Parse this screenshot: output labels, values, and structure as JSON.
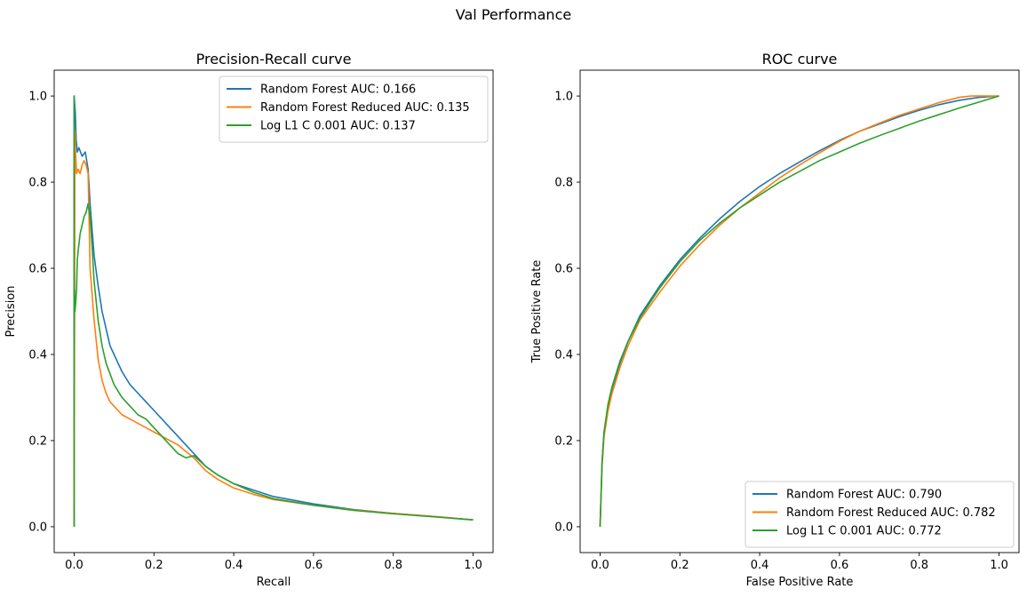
{
  "figure": {
    "suptitle": "Val Performance"
  },
  "colors": {
    "blue": "#1f77b4",
    "orange": "#ff7f0e",
    "green": "#2ca02c"
  },
  "chart_data": [
    {
      "type": "line",
      "title": "Precision-Recall curve",
      "xlabel": "Recall",
      "ylabel": "Precision",
      "xlim": [
        -0.05,
        1.05
      ],
      "ylim": [
        -0.06,
        1.06
      ],
      "xticks": [
        0.0,
        0.2,
        0.4,
        0.6,
        0.8,
        1.0
      ],
      "yticks": [
        0.0,
        0.2,
        0.4,
        0.6,
        0.8,
        1.0
      ],
      "grid": false,
      "legend": "upper right",
      "series": [
        {
          "name": "Random Forest AUC: 0.166",
          "color": "#1f77b4",
          "x": [
            0.0,
            0.0,
            0.003,
            0.005,
            0.008,
            0.012,
            0.02,
            0.028,
            0.035,
            0.04,
            0.05,
            0.06,
            0.07,
            0.08,
            0.09,
            0.1,
            0.12,
            0.14,
            0.16,
            0.18,
            0.2,
            0.22,
            0.24,
            0.26,
            0.28,
            0.3,
            0.33,
            0.36,
            0.4,
            0.45,
            0.5,
            0.6,
            0.7,
            0.8,
            0.9,
            1.0
          ],
          "y": [
            0.0,
            1.0,
            0.96,
            0.9,
            0.87,
            0.88,
            0.86,
            0.87,
            0.83,
            0.75,
            0.63,
            0.56,
            0.5,
            0.46,
            0.42,
            0.4,
            0.36,
            0.33,
            0.31,
            0.29,
            0.27,
            0.25,
            0.23,
            0.21,
            0.19,
            0.17,
            0.14,
            0.12,
            0.1,
            0.085,
            0.07,
            0.053,
            0.04,
            0.031,
            0.024,
            0.016
          ]
        },
        {
          "name": "Random Forest Reduced AUC: 0.135",
          "color": "#ff7f0e",
          "x": [
            0.0,
            0.002,
            0.004,
            0.006,
            0.01,
            0.015,
            0.02,
            0.025,
            0.03,
            0.035,
            0.04,
            0.05,
            0.06,
            0.07,
            0.08,
            0.09,
            0.1,
            0.12,
            0.14,
            0.16,
            0.18,
            0.2,
            0.22,
            0.24,
            0.26,
            0.28,
            0.3,
            0.33,
            0.36,
            0.4,
            0.45,
            0.5,
            0.6,
            0.7,
            0.8,
            0.9,
            1.0
          ],
          "y": [
            0.0,
            0.92,
            0.86,
            0.82,
            0.83,
            0.82,
            0.84,
            0.85,
            0.84,
            0.82,
            0.6,
            0.48,
            0.39,
            0.34,
            0.31,
            0.29,
            0.28,
            0.26,
            0.25,
            0.24,
            0.23,
            0.22,
            0.21,
            0.2,
            0.19,
            0.175,
            0.16,
            0.13,
            0.11,
            0.09,
            0.075,
            0.063,
            0.05,
            0.039,
            0.031,
            0.024,
            0.016
          ]
        },
        {
          "name": "Log L1 C 0.001 AUC: 0.137",
          "color": "#2ca02c",
          "x": [
            0.0,
            0.0,
            0.0,
            0.001,
            0.002,
            0.004,
            0.006,
            0.008,
            0.01,
            0.015,
            0.02,
            0.025,
            0.03,
            0.035,
            0.04,
            0.045,
            0.05,
            0.06,
            0.07,
            0.08,
            0.1,
            0.12,
            0.14,
            0.16,
            0.18,
            0.2,
            0.22,
            0.24,
            0.26,
            0.28,
            0.3,
            0.33,
            0.36,
            0.4,
            0.45,
            0.5,
            0.6,
            0.7,
            0.8,
            0.9,
            1.0
          ],
          "y": [
            0.0,
            1.0,
            0.4,
            0.55,
            0.5,
            0.52,
            0.55,
            0.62,
            0.64,
            0.68,
            0.7,
            0.72,
            0.73,
            0.75,
            0.72,
            0.65,
            0.57,
            0.48,
            0.42,
            0.38,
            0.33,
            0.3,
            0.28,
            0.26,
            0.25,
            0.23,
            0.21,
            0.19,
            0.17,
            0.16,
            0.165,
            0.14,
            0.12,
            0.1,
            0.08,
            0.065,
            0.05,
            0.038,
            0.03,
            0.023,
            0.016
          ]
        }
      ]
    },
    {
      "type": "line",
      "title": "ROC curve",
      "xlabel": "False Positive Rate",
      "ylabel": "True Positive Rate",
      "xlim": [
        -0.05,
        1.05
      ],
      "ylim": [
        -0.06,
        1.06
      ],
      "xticks": [
        0.0,
        0.2,
        0.4,
        0.6,
        0.8,
        1.0
      ],
      "yticks": [
        0.0,
        0.2,
        0.4,
        0.6,
        0.8,
        1.0
      ],
      "grid": false,
      "legend": "lower right",
      "series": [
        {
          "name": "Random Forest AUC: 0.790",
          "color": "#1f77b4",
          "x": [
            0.0,
            0.005,
            0.01,
            0.02,
            0.03,
            0.05,
            0.07,
            0.1,
            0.15,
            0.2,
            0.25,
            0.3,
            0.35,
            0.4,
            0.45,
            0.5,
            0.55,
            0.6,
            0.65,
            0.7,
            0.75,
            0.8,
            0.85,
            0.9,
            0.95,
            1.0
          ],
          "y": [
            0.0,
            0.15,
            0.22,
            0.28,
            0.32,
            0.38,
            0.43,
            0.49,
            0.56,
            0.62,
            0.67,
            0.715,
            0.755,
            0.79,
            0.82,
            0.847,
            0.873,
            0.897,
            0.918,
            0.935,
            0.952,
            0.967,
            0.98,
            0.99,
            0.997,
            1.0
          ]
        },
        {
          "name": "Random Forest Reduced AUC: 0.782",
          "color": "#ff7f0e",
          "x": [
            0.0,
            0.005,
            0.01,
            0.02,
            0.03,
            0.05,
            0.07,
            0.1,
            0.15,
            0.2,
            0.25,
            0.3,
            0.35,
            0.4,
            0.45,
            0.5,
            0.55,
            0.6,
            0.65,
            0.7,
            0.75,
            0.8,
            0.85,
            0.9,
            0.93,
            0.95,
            1.0
          ],
          "y": [
            0.0,
            0.14,
            0.21,
            0.27,
            0.31,
            0.37,
            0.42,
            0.48,
            0.545,
            0.605,
            0.655,
            0.7,
            0.74,
            0.775,
            0.81,
            0.84,
            0.868,
            0.895,
            0.918,
            0.937,
            0.955,
            0.97,
            0.985,
            0.997,
            1.0,
            1.0,
            1.0
          ]
        },
        {
          "name": "Log L1 C 0.001 AUC: 0.772",
          "color": "#2ca02c",
          "x": [
            0.0,
            0.005,
            0.01,
            0.02,
            0.03,
            0.05,
            0.07,
            0.1,
            0.15,
            0.2,
            0.25,
            0.3,
            0.35,
            0.4,
            0.45,
            0.5,
            0.55,
            0.6,
            0.65,
            0.7,
            0.75,
            0.8,
            0.85,
            0.9,
            0.95,
            1.0
          ],
          "y": [
            0.0,
            0.15,
            0.22,
            0.285,
            0.325,
            0.385,
            0.43,
            0.485,
            0.555,
            0.615,
            0.665,
            0.705,
            0.74,
            0.77,
            0.8,
            0.825,
            0.85,
            0.87,
            0.89,
            0.908,
            0.925,
            0.942,
            0.957,
            0.972,
            0.986,
            1.0
          ]
        }
      ]
    }
  ]
}
